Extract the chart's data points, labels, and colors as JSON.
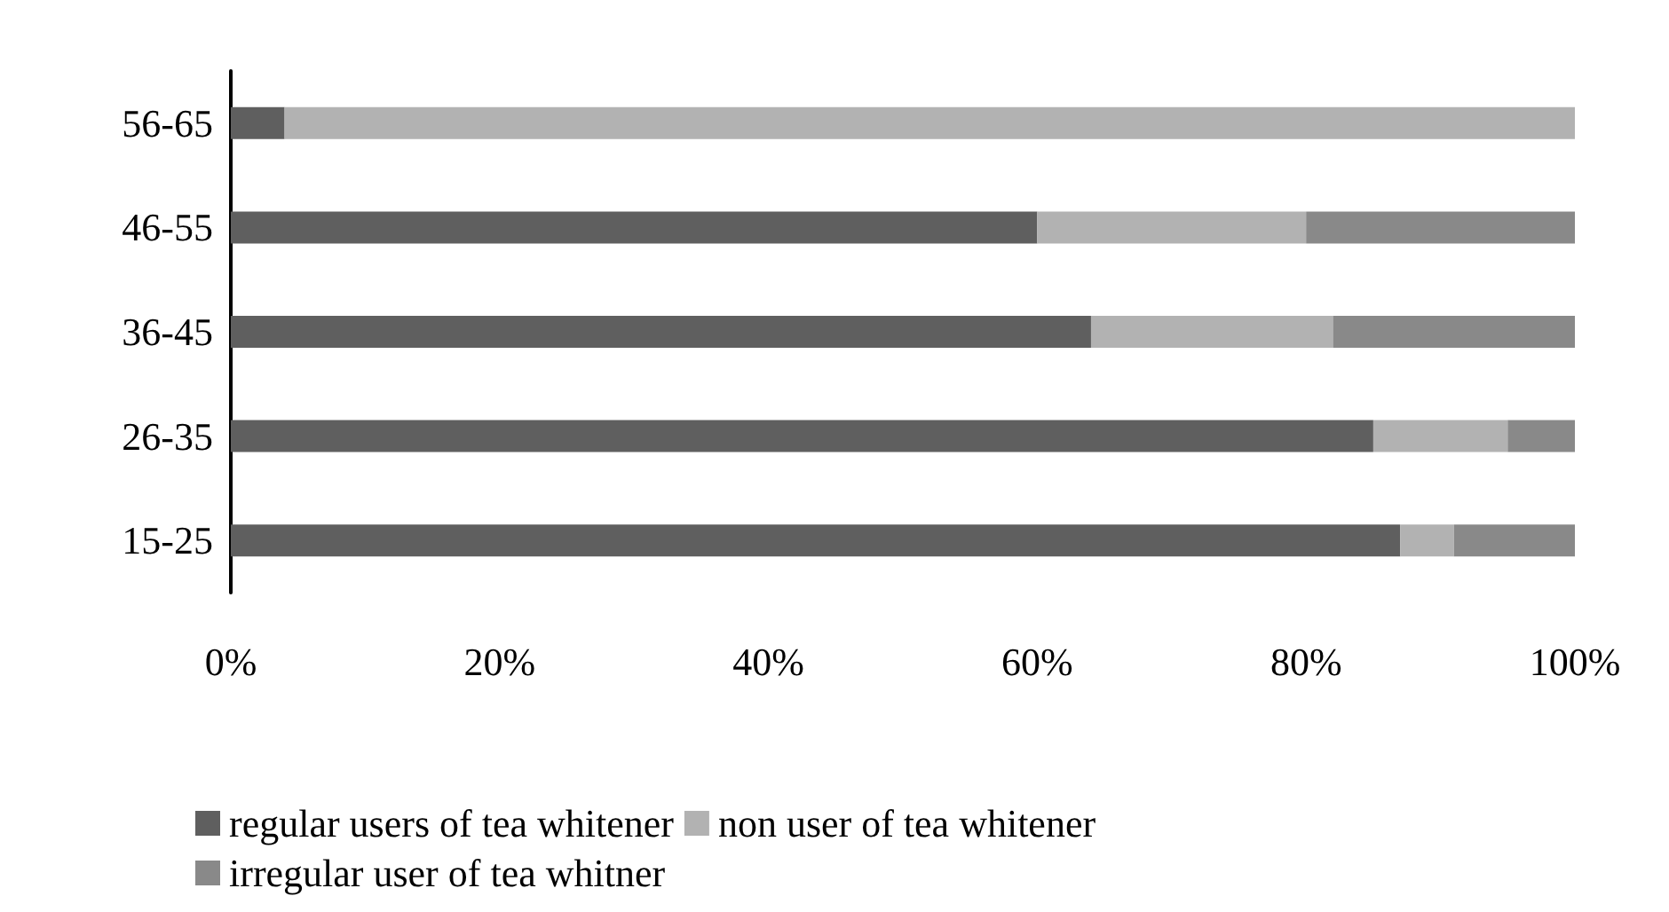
{
  "chart_data": {
    "type": "bar",
    "orientation": "horizontal",
    "stacked": true,
    "categories": [
      "56-65",
      "46-55",
      "36-45",
      "26-35",
      "15-25"
    ],
    "series": [
      {
        "name": "regular users of tea whitener",
        "color": "#5f5f5f",
        "values": [
          4,
          60,
          64,
          85,
          87
        ]
      },
      {
        "name": "non user of tea whitener",
        "color": "#b2b2b2",
        "values": [
          96,
          20,
          18,
          10,
          4
        ]
      },
      {
        "name": "irregular user of tea whitner",
        "color": "#898989",
        "values": [
          0,
          20,
          18,
          5,
          9
        ]
      }
    ],
    "xlim": [
      0,
      100
    ],
    "xticks": [
      {
        "value": 0,
        "label": "0%"
      },
      {
        "value": 20,
        "label": "20%"
      },
      {
        "value": 40,
        "label": "40%"
      },
      {
        "value": 60,
        "label": "60%"
      },
      {
        "value": 80,
        "label": "80%"
      },
      {
        "value": 100,
        "label": "100%"
      }
    ],
    "grid": false,
    "legend": "bottom"
  }
}
